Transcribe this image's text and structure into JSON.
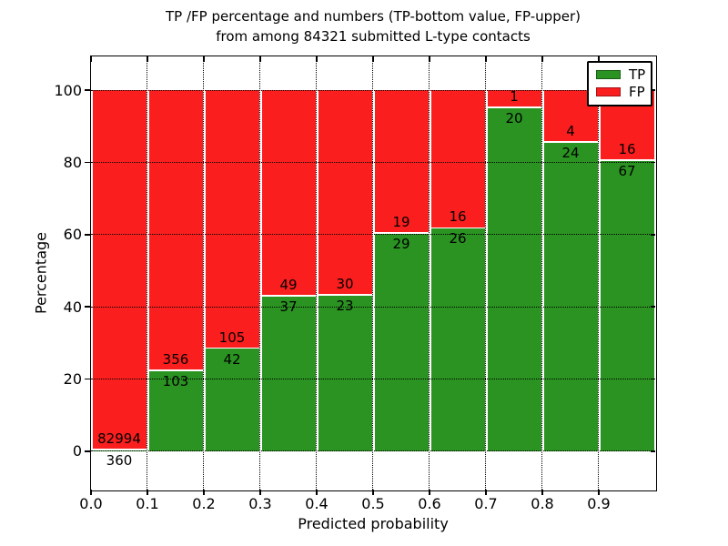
{
  "title": {
    "line1": "TP /FP percentage and numbers (TP-bottom value, FP-upper)",
    "line2": "from among 84321 submitted L-type contacts"
  },
  "chart_data": {
    "type": "bar",
    "stacked": true,
    "normalized_to_percent": true,
    "x_bins": [
      "0.0",
      "0.1",
      "0.2",
      "0.3",
      "0.4",
      "0.5",
      "0.6",
      "0.7",
      "0.8",
      "0.9"
    ],
    "bin_width": 0.1,
    "series": [
      {
        "name": "TP",
        "color": "#2b9322",
        "values": [
          360,
          103,
          42,
          37,
          23,
          29,
          26,
          20,
          24,
          67
        ]
      },
      {
        "name": "FP",
        "color": "#fa1e1e",
        "values": [
          82994,
          356,
          105,
          49,
          30,
          19,
          16,
          1,
          4,
          16
        ]
      }
    ],
    "xlabel": "Predicted probability",
    "ylabel": "Percentage",
    "xticks": [
      "0.0",
      "0.1",
      "0.2",
      "0.3",
      "0.4",
      "0.5",
      "0.6",
      "0.7",
      "0.8",
      "0.9"
    ],
    "yticks": [
      0,
      20,
      40,
      60,
      80,
      100
    ],
    "xlim": [
      0.0,
      1.0
    ],
    "ylim": [
      -10.6,
      109.4
    ],
    "grid": "dotted black, both axes",
    "legend": {
      "position": "upper right"
    }
  }
}
